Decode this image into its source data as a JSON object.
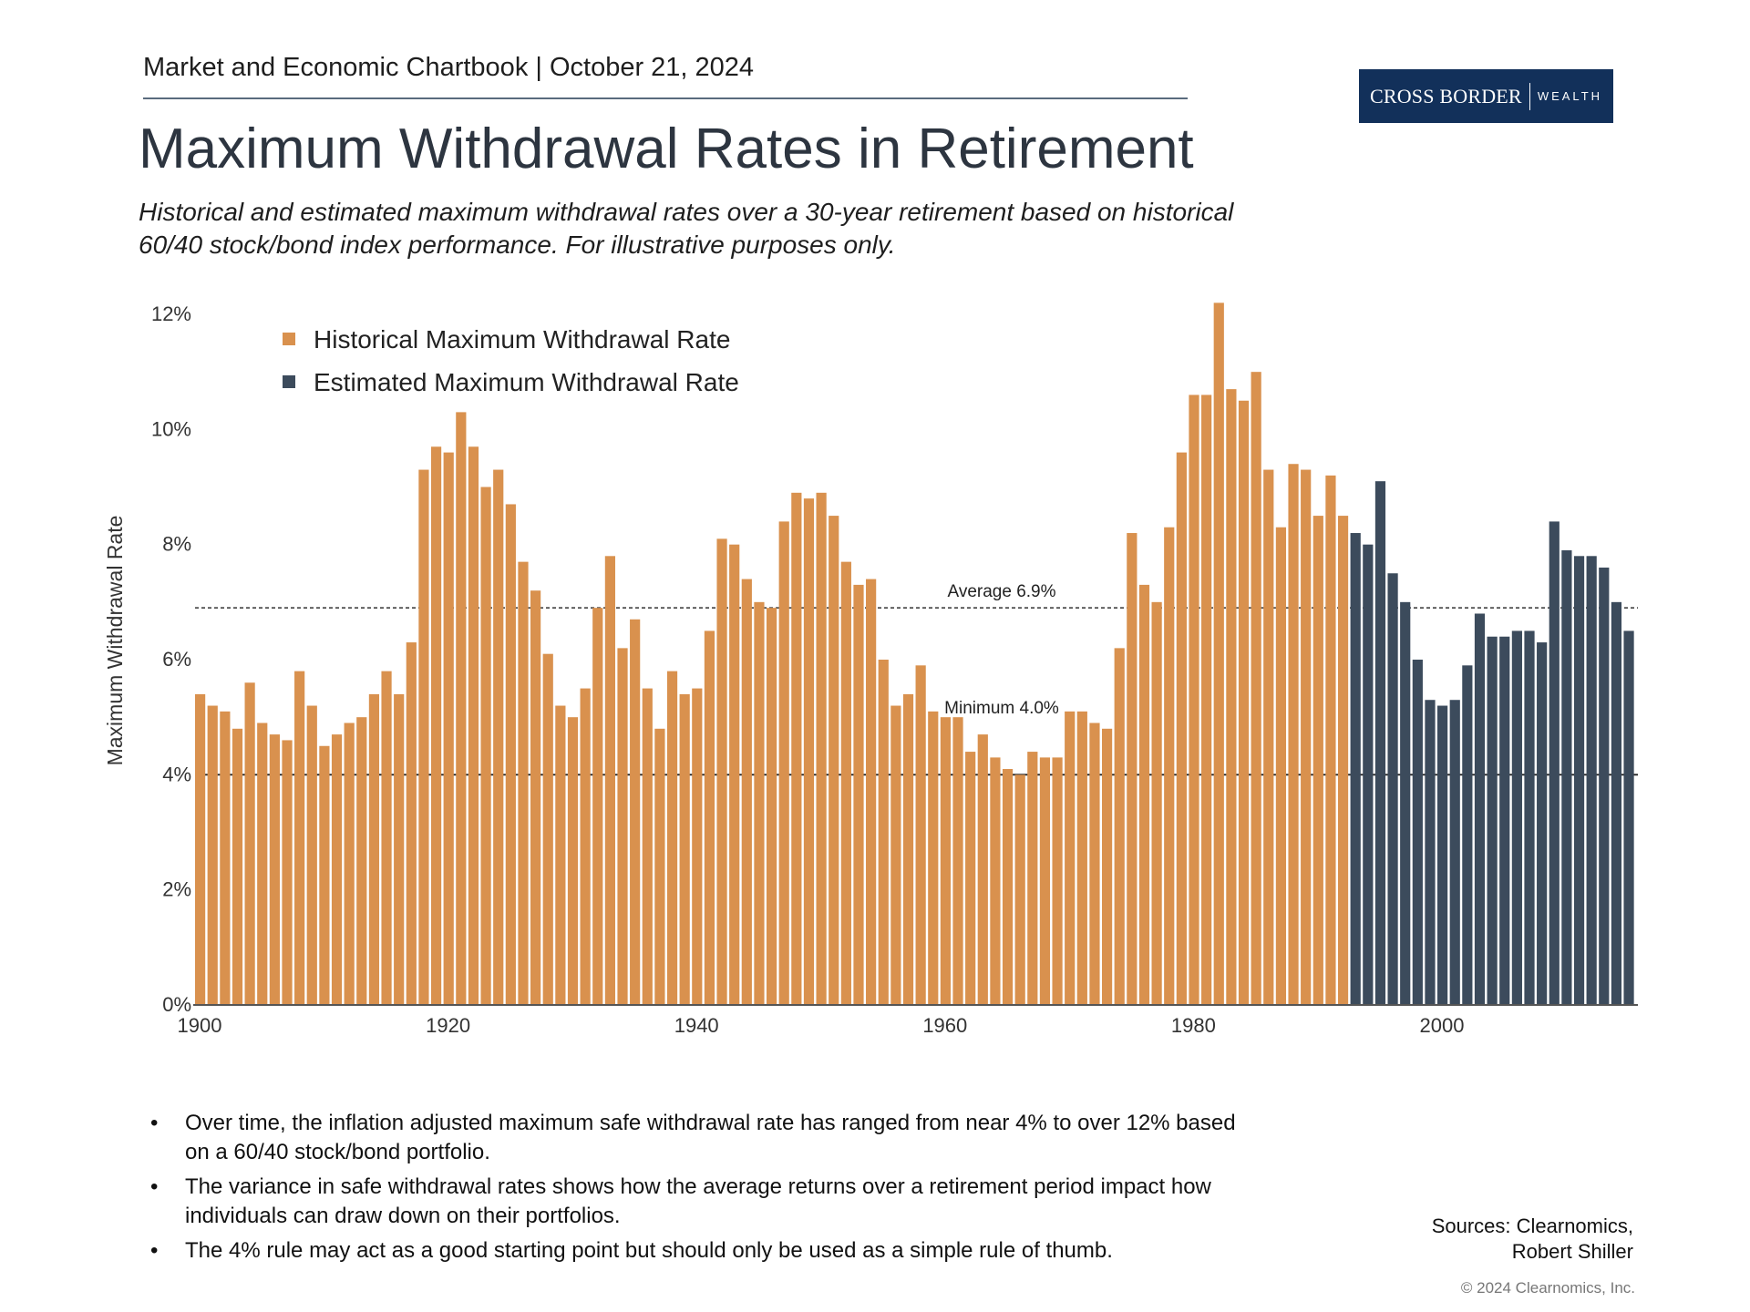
{
  "header": {
    "chartbook": "Market and Economic Chartbook | October 21, 2024",
    "logo_main": "CROSS BORDER",
    "logo_sub": "WEALTH"
  },
  "title": "Maximum Withdrawal Rates in Retirement",
  "subtitle": "Historical and estimated maximum withdrawal rates over a 30-year retirement based on historical 60/40 stock/bond index performance. For illustrative purposes only.",
  "colors": {
    "historical": "#d9914e",
    "estimated": "#3c4b5c",
    "axis": "#555555",
    "text": "#333333"
  },
  "chart_data": {
    "type": "bar",
    "title": "Maximum Withdrawal Rates in Retirement",
    "xlabel": "",
    "ylabel": "Maximum Withdrawal Rate",
    "ylim": [
      0,
      12
    ],
    "yticks": [
      "0%",
      "2%",
      "4%",
      "6%",
      "8%",
      "10%",
      "12%"
    ],
    "xticks": [
      1900,
      1920,
      1940,
      1960,
      1980,
      2000
    ],
    "x_start": 1900,
    "legend": [
      "Historical Maximum Withdrawal Rate",
      "Estimated Maximum Withdrawal Rate"
    ],
    "legend_position": "top-left",
    "series": [
      {
        "name": "Historical Maximum Withdrawal Rate",
        "start_year": 1900,
        "values": [
          5.4,
          5.2,
          5.1,
          4.8,
          5.6,
          4.9,
          4.7,
          4.6,
          5.8,
          5.2,
          4.5,
          4.7,
          4.9,
          5.0,
          5.4,
          5.8,
          5.4,
          6.3,
          9.3,
          9.7,
          9.6,
          10.3,
          9.7,
          9.0,
          9.3,
          8.7,
          7.7,
          7.2,
          6.1,
          5.2,
          5.0,
          5.5,
          6.9,
          7.8,
          6.2,
          6.7,
          5.5,
          4.8,
          5.8,
          5.4,
          5.5,
          6.5,
          8.1,
          8.0,
          7.4,
          7.0,
          6.9,
          8.4,
          8.9,
          8.8,
          8.9,
          8.5,
          7.7,
          7.3,
          7.4,
          6.0,
          5.2,
          5.4,
          5.9,
          5.1,
          5.0,
          5.0,
          4.4,
          4.7,
          4.3,
          4.1,
          4.0,
          4.4,
          4.3,
          4.3,
          5.1,
          5.1,
          4.9,
          4.8,
          6.2,
          8.2,
          7.3,
          7.0,
          8.3,
          9.6,
          10.6,
          10.6,
          12.2,
          10.7,
          10.5,
          11.0,
          9.3,
          8.3,
          9.4,
          9.3,
          8.5,
          9.2,
          8.5
        ]
      },
      {
        "name": "Estimated Maximum Withdrawal Rate",
        "start_year": 1993,
        "values": [
          8.2,
          8.0,
          9.1,
          7.5,
          7.0,
          6.0,
          5.3,
          5.2,
          5.3,
          5.9,
          6.8,
          6.4,
          6.4,
          6.5,
          6.5,
          6.3,
          8.4,
          7.9,
          7.8,
          7.8,
          7.6,
          7.0,
          6.5
        ]
      }
    ],
    "reference_lines": [
      {
        "label": "Average 6.9%",
        "value": 6.9,
        "style": "dashed"
      },
      {
        "label": "Minimum 4.0%",
        "value": 4.0,
        "style": "solid"
      }
    ]
  },
  "bullets": [
    "Over time, the inflation adjusted maximum safe withdrawal rate has ranged from near 4% to over 12% based on a 60/40 stock/bond portfolio.",
    "The variance in safe withdrawal rates shows how the average returns over a retirement period impact how individuals can draw down on their portfolios.",
    "The 4% rule may act as a good starting point but should only be used as a simple rule of thumb."
  ],
  "sources": {
    "line1": "Sources: Clearnomics,",
    "line2": "Robert Shiller"
  },
  "copyright": "© 2024 Clearnomics, Inc."
}
